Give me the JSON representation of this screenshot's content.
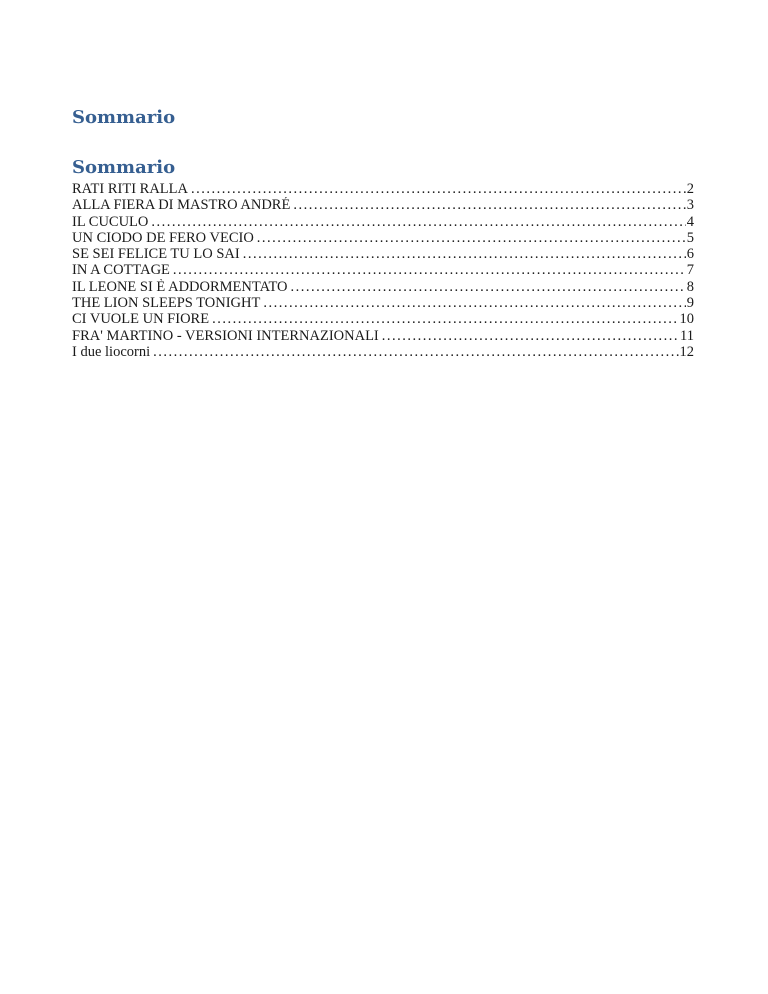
{
  "document": {
    "title": "Sommario",
    "text_color": "#1a1a1a",
    "heading_color": "#365F91"
  },
  "toc": {
    "heading": "Sommario",
    "entries": [
      {
        "label": "RATI RITI RALLA",
        "page": "2"
      },
      {
        "label": "ALLA FIERA DI MASTRO ANDRÉ",
        "page": "3"
      },
      {
        "label": "IL CUCULO",
        "page": "4"
      },
      {
        "label": "UN CIODO DE FERO VECIO",
        "page": "5"
      },
      {
        "label": "SE SEI FELICE TU LO SAI",
        "page": "6"
      },
      {
        "label": "IN A COTTAGE",
        "page": "7"
      },
      {
        "label": "IL LEONE SI È ADDORMENTATO",
        "page": "8"
      },
      {
        "label": "THE LION SLEEPS TONIGHT",
        "page": "9"
      },
      {
        "label": "CI VUOLE UN FIORE",
        "page": "10"
      },
      {
        "label": "FRA' MARTINO - VERSIONI INTERNAZIONALI",
        "page": "11"
      },
      {
        "label": "I due liocorni",
        "page": "12"
      }
    ]
  }
}
